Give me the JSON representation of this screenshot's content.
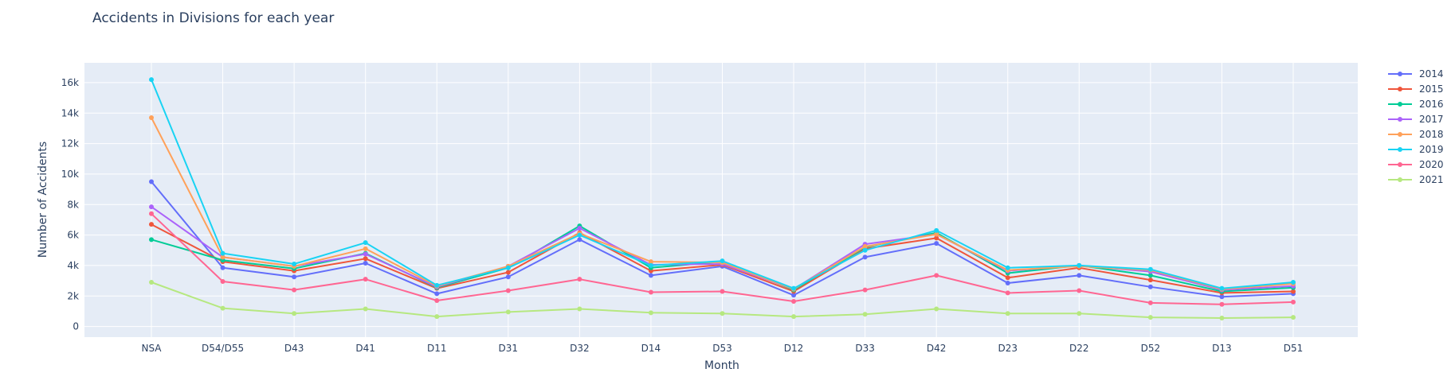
{
  "chart_data": {
    "type": "line",
    "title": "Accidents in Divisions for each year",
    "xlabel": "Month",
    "ylabel": "Number of Accidents",
    "categories": [
      "NSA",
      "D54/D55",
      "D43",
      "D41",
      "D11",
      "D31",
      "D32",
      "D14",
      "D53",
      "D12",
      "D33",
      "D42",
      "D23",
      "D22",
      "D52",
      "D13",
      "D51"
    ],
    "y_ticks": [
      {
        "value": 0,
        "label": "0"
      },
      {
        "value": 2000,
        "label": "2k"
      },
      {
        "value": 4000,
        "label": "4k"
      },
      {
        "value": 6000,
        "label": "6k"
      },
      {
        "value": 8000,
        "label": "8k"
      },
      {
        "value": 10000,
        "label": "10k"
      },
      {
        "value": 12000,
        "label": "12k"
      },
      {
        "value": 14000,
        "label": "14k"
      },
      {
        "value": 16000,
        "label": "16k"
      }
    ],
    "ylim": [
      -700,
      17300
    ],
    "grid": true,
    "legend_position": "right",
    "plot_background": "#e5ecf6",
    "series": [
      {
        "name": "2014",
        "color": "#636efa",
        "values": [
          9500,
          3850,
          3250,
          4150,
          2150,
          3250,
          5700,
          3350,
          3950,
          2050,
          4550,
          5450,
          2850,
          3350,
          2600,
          1950,
          2150
        ]
      },
      {
        "name": "2015",
        "color": "#ef553b",
        "values": [
          6700,
          4250,
          3650,
          4450,
          2500,
          3550,
          6150,
          3650,
          4050,
          2300,
          5100,
          5800,
          3200,
          3850,
          3050,
          2200,
          2300
        ]
      },
      {
        "name": "2016",
        "color": "#00cc96",
        "values": [
          5700,
          4350,
          3800,
          4800,
          2550,
          3850,
          6600,
          3850,
          4250,
          2400,
          5200,
          6150,
          3500,
          4000,
          3350,
          2300,
          2550
        ]
      },
      {
        "name": "2017",
        "color": "#ab63fa",
        "values": [
          7850,
          4550,
          3950,
          4750,
          2600,
          3950,
          6450,
          4050,
          4100,
          2450,
          5400,
          6050,
          3650,
          4000,
          3600,
          2400,
          2650
        ]
      },
      {
        "name": "2018",
        "color": "#ffa15a",
        "values": [
          13700,
          4550,
          3950,
          5100,
          2650,
          3950,
          6100,
          4250,
          4200,
          2450,
          5250,
          6050,
          3700,
          3950,
          3700,
          2450,
          2800
        ]
      },
      {
        "name": "2019",
        "color": "#19d3f3",
        "values": [
          16200,
          4800,
          4100,
          5500,
          2700,
          3850,
          6000,
          4000,
          4300,
          2500,
          5000,
          6300,
          3850,
          4000,
          3750,
          2500,
          2900
        ]
      },
      {
        "name": "2020",
        "color": "#ff6692",
        "values": [
          7400,
          2950,
          2400,
          3100,
          1700,
          2350,
          3100,
          2250,
          2300,
          1650,
          2400,
          3350,
          2200,
          2350,
          1550,
          1450,
          1600
        ]
      },
      {
        "name": "2021",
        "color": "#b6e880",
        "values": [
          2900,
          1200,
          850,
          1150,
          650,
          950,
          1150,
          900,
          850,
          650,
          800,
          1150,
          850,
          850,
          600,
          550,
          600
        ]
      }
    ]
  }
}
